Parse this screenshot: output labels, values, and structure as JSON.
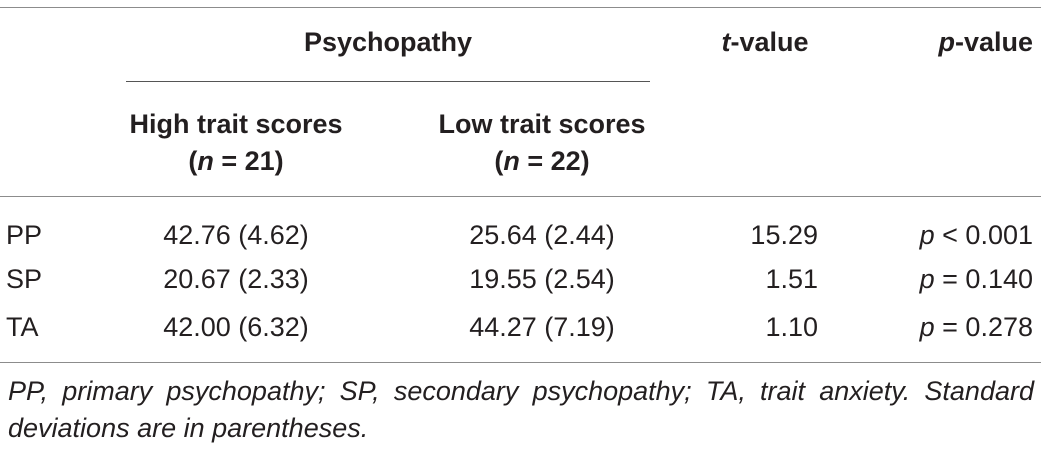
{
  "table": {
    "header": {
      "group_label": "Psychopathy",
      "t_value": {
        "italic": "t",
        "rest": "-value"
      },
      "p_value": {
        "italic": "p",
        "rest": "-value"
      },
      "high": {
        "line1": "High trait scores",
        "paren_open": "(",
        "n": "n",
        "eq": " = 21)"
      },
      "low": {
        "line1": "Low trait scores",
        "paren_open": "(",
        "n": "n",
        "eq": " = 22)"
      }
    },
    "rows": [
      {
        "label": "PP",
        "high": "42.76 (4.62)",
        "low": "25.64 (2.44)",
        "t": "15.29",
        "p_italic": "p",
        "p_rest": " < 0.001"
      },
      {
        "label": "SP",
        "high": "20.67 (2.33)",
        "low": "19.55 (2.54)",
        "t": "1.51",
        "p_italic": "p",
        "p_rest": " = 0.140"
      },
      {
        "label": "TA",
        "high": "42.00 (6.32)",
        "low": "44.27 (7.19)",
        "t": "1.10",
        "p_italic": "p",
        "p_rest": " = 0.278"
      }
    ],
    "footnote": "PP, primary psychopathy; SP, secondary psychopathy; TA, trait anxiety. Standard deviations are in parentheses."
  }
}
